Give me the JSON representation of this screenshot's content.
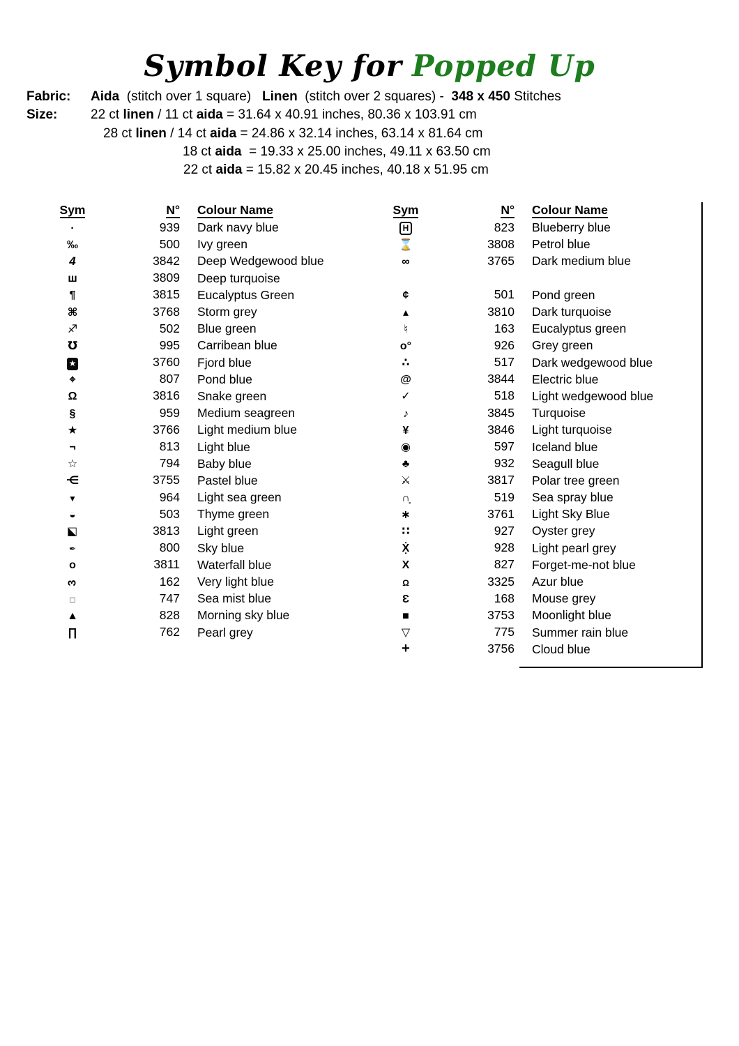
{
  "title": {
    "prefix": "Symbol Key for",
    "name": "Popped Up",
    "accent_color": "#1d7d1f"
  },
  "info_lines": [
    [
      {
        "t": "Fabric:",
        "b": true,
        "label": true
      },
      {
        "t": "Aida",
        "b": true
      },
      {
        "t": "  (stitch over 1 square)   ",
        "b": false
      },
      {
        "t": "Linen",
        "b": true
      },
      {
        "t": "  (stitch over 2 squares) -  ",
        "b": false
      },
      {
        "t": "348 x 450",
        "b": true
      },
      {
        "t": " Stitches",
        "b": false
      }
    ],
    [
      {
        "t": "Size:",
        "b": true,
        "label": true
      },
      {
        "t": "22 ct ",
        "b": false
      },
      {
        "t": "linen",
        "b": true
      },
      {
        "t": " / 11 ct ",
        "b": false
      },
      {
        "t": "aida",
        "b": true
      },
      {
        "t": " = 31.64 x 40.91 inches, 80.36 x 103.91 cm",
        "b": false
      }
    ],
    [
      {
        "t": "28 ct ",
        "b": false
      },
      {
        "t": "linen",
        "b": true
      },
      {
        "t": " / 14 ct ",
        "b": false
      },
      {
        "t": "aida",
        "b": true
      },
      {
        "t": " = 24.86 x 32.14 inches, 63.14 x 81.64 cm",
        "b": false
      }
    ],
    [
      {
        "t": "18 ct ",
        "b": false
      },
      {
        "t": "aida",
        "b": true
      },
      {
        "t": "  = 19.33 x 25.00 inches, 49.11 x 63.50 cm",
        "b": false
      }
    ],
    [
      {
        "t": "22 ct ",
        "b": false
      },
      {
        "t": "aida",
        "b": true
      },
      {
        "t": " = 15.82 x 20.45 inches, 40.18 x 51.95 cm",
        "b": false
      }
    ]
  ],
  "table": {
    "headers": {
      "sym": "Sym",
      "num": "N°",
      "name": "Colour Name"
    },
    "left_rows": [
      {
        "sym": "·",
        "num": "939",
        "name": "Dark navy blue"
      },
      {
        "sym": "‰",
        "num": "500",
        "name": "Ivy green"
      },
      {
        "sym": "4",
        "cls": "ital",
        "num": "3842",
        "name": "Deep Wedgewood blue"
      },
      {
        "sym": "ш",
        "num": "3809",
        "name": "Deep turquoise"
      },
      {
        "sym": "¶",
        "num": "3815",
        "name": "Eucalyptus Green"
      },
      {
        "sym": "⌘",
        "num": "3768",
        "name": "Storm grey"
      },
      {
        "sym": "♐",
        "num": "502",
        "name": "Blue green"
      },
      {
        "sym": "℧",
        "num": "995",
        "name": "Carribean blue"
      },
      {
        "sym": "★",
        "cls": "boxed",
        "num": "3760",
        "name": "Fjord blue"
      },
      {
        "sym": "⌖",
        "num": "807",
        "name": "Pond blue"
      },
      {
        "sym": "Ω",
        "num": "3816",
        "name": "Snake green"
      },
      {
        "sym": "§",
        "num": "959",
        "name": "Medium seagreen"
      },
      {
        "sym": "★",
        "num": "3766",
        "name": "Light medium blue"
      },
      {
        "sym": "¬",
        "num": "813",
        "name": "Light blue"
      },
      {
        "sym": "☆",
        "num": "794",
        "name": "Baby blue"
      },
      {
        "sym": "⋲",
        "num": "3755",
        "name": "Pastel blue"
      },
      {
        "sym": "▼",
        "cls": "small",
        "num": "964",
        "name": "Light sea green"
      },
      {
        "sym": "◒",
        "num": "503",
        "name": "Thyme green"
      },
      {
        "sym": "◪",
        "cls": "fliph",
        "num": "3813",
        "name": "Light green"
      },
      {
        "sym": "✒",
        "cls": "small",
        "num": "800",
        "name": "Sky blue"
      },
      {
        "sym": "o",
        "num": "3811",
        "name": "Waterfall blue"
      },
      {
        "sym": "3",
        "cls": "rot",
        "num": "162",
        "name": "Very light blue"
      },
      {
        "sym": "□",
        "cls": "small",
        "num": "747",
        "name": "Sea mist blue"
      },
      {
        "sym": "▲",
        "num": "828",
        "name": "Morning sky blue"
      },
      {
        "sym": "∏",
        "num": "762",
        "name": "Pearl grey"
      }
    ],
    "right_rows": [
      {
        "sym": "H",
        "cls": "framed",
        "num": "823",
        "name": "Blueberry blue"
      },
      {
        "sym": "⌛",
        "num": "3808",
        "name": "Petrol blue"
      },
      {
        "sym": "∞",
        "num": "3765",
        "name": "Dark medium blue"
      },
      {
        "blank": true
      },
      {
        "sym": "¢",
        "num": "501",
        "name": "Pond green"
      },
      {
        "sym": "▴",
        "num": "3810",
        "name": "Dark turquoise"
      },
      {
        "sym": "♮",
        "num": "163",
        "name": "Eucalyptus green"
      },
      {
        "sym": "o°",
        "num": "926",
        "name": "Grey green"
      },
      {
        "sym": "∴",
        "num": "517",
        "name": "Dark wedgewood blue"
      },
      {
        "sym": "@",
        "num": "3844",
        "name": "Electric blue"
      },
      {
        "sym": "✓",
        "num": "518",
        "name": "Light wedgewood blue"
      },
      {
        "sym": "♪",
        "num": "3845",
        "name": "Turquoise"
      },
      {
        "sym": "¥",
        "num": "3846",
        "name": "Light turquoise"
      },
      {
        "sym": "◉",
        "num": "597",
        "name": "Iceland blue"
      },
      {
        "sym": "♣",
        "num": "932",
        "name": "Seagull blue"
      },
      {
        "sym": "⚔",
        "num": "3817",
        "name": "Polar tree green"
      },
      {
        "sym": "∩̣",
        "num": "519",
        "name": "Sea spray blue"
      },
      {
        "sym": "∗",
        "num": "3761",
        "name": "Light Sky Blue"
      },
      {
        "sym": "∷",
        "num": "927",
        "name": "Oyster grey"
      },
      {
        "sym": "Ẋ̣",
        "num": "928",
        "name": "Light pearl grey"
      },
      {
        "sym": "X",
        "num": "827",
        "name": "Forget-me-not blue"
      },
      {
        "sym": "Ω",
        "cls": "small",
        "num": "3325",
        "name": "Azur blue"
      },
      {
        "sym": "Ɛ",
        "num": "168",
        "name": "Mouse grey"
      },
      {
        "sym": "■",
        "num": "3753",
        "name": "Moonlight blue"
      },
      {
        "sym": "▽",
        "num": "775",
        "name": "Summer rain blue"
      },
      {
        "sym": "+",
        "cls": "boldplus",
        "num": "3756",
        "name": "Cloud blue"
      }
    ]
  }
}
